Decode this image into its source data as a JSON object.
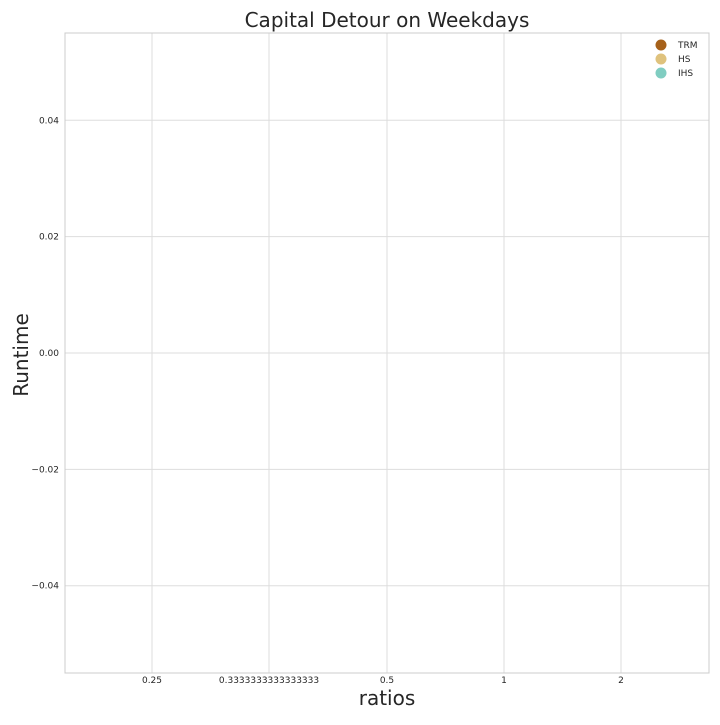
{
  "chart_data": {
    "type": "scatter",
    "title": "Capital Detour on Weekdays",
    "xlabel": "ratios",
    "ylabel": "Runtime",
    "categories": [
      "0.25",
      "0.3333333333333333",
      "0.5",
      "1",
      "2"
    ],
    "y_ticks": [
      "0.04",
      "0.02",
      "0.00",
      "−0.02",
      "−0.04"
    ],
    "y_tick_values": [
      0.04,
      0.02,
      0.0,
      -0.02,
      -0.04
    ],
    "ylim": [
      -0.055,
      0.055
    ],
    "grid": true,
    "legend_position": "top-right",
    "series": [
      {
        "name": "TRM",
        "color": "#a6611a",
        "values": []
      },
      {
        "name": "HS",
        "color": "#dfc27d",
        "values": []
      },
      {
        "name": "IHS",
        "color": "#80cdc1",
        "values": []
      }
    ]
  }
}
